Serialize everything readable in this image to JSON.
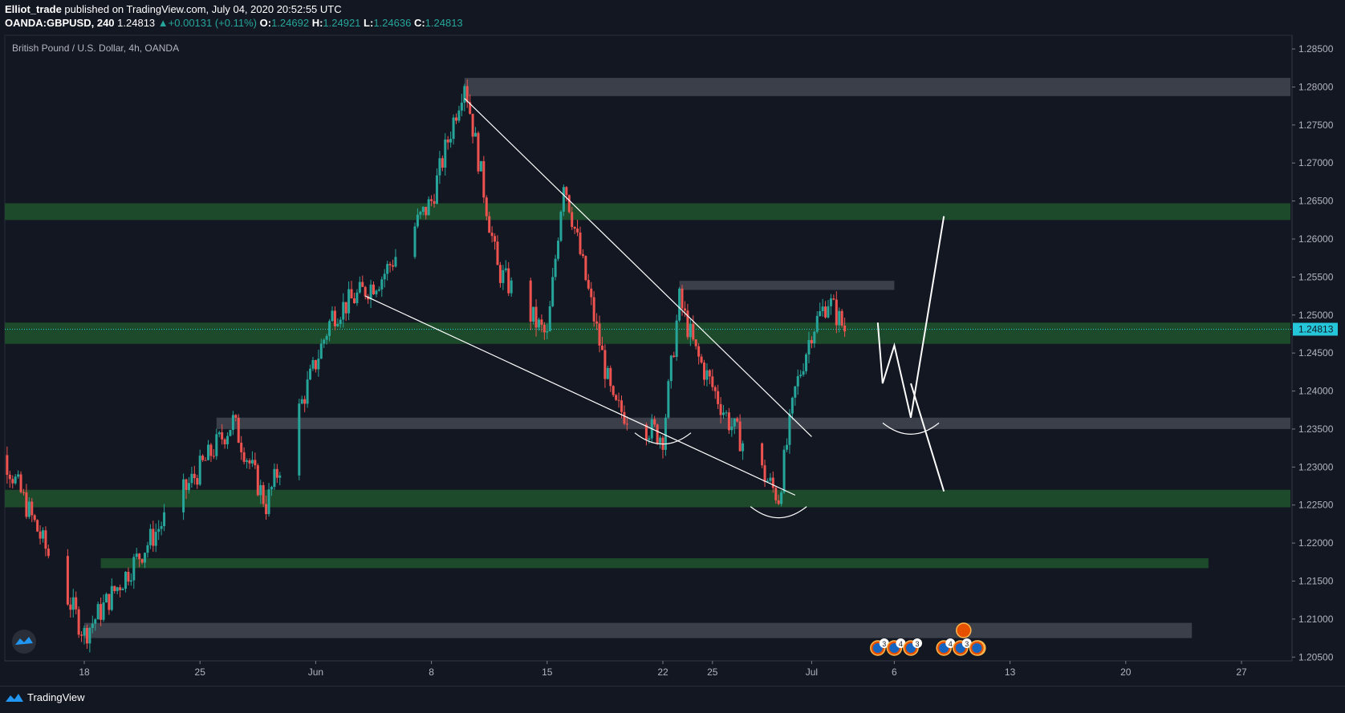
{
  "header": {
    "publisher": "Elliot_trade",
    "published_text": "published on TradingView.com, July 04, 2020 20:52:55 UTC",
    "symbol": "OANDA:GBPUSD, 240",
    "last": "1.24813",
    "change": "+0.00131 (+0.11%)",
    "open_label": "O:",
    "open": "1.24692",
    "high_label": "H:",
    "high": "1.24921",
    "low_label": "L:",
    "low": "1.24636",
    "close_label": "C:",
    "close": "1.24813"
  },
  "footer": {
    "brand": "TradingView"
  },
  "colors": {
    "up": "#26a69a",
    "down": "#ef5350",
    "bg": "#131722",
    "zone_green": "#1e4d2b",
    "zone_grey": "#434651",
    "price_tag": "#26c6da"
  },
  "chart_data": {
    "type": "candlestick",
    "title": "British Pound / U.S. Dollar, 4h, OANDA",
    "y_ticks": [
      "1.28500",
      "1.28000",
      "1.27500",
      "1.27000",
      "1.26500",
      "1.26000",
      "1.25500",
      "1.25000",
      "1.24500",
      "1.24000",
      "1.23500",
      "1.23000",
      "1.22500",
      "1.22000",
      "1.21500",
      "1.21000",
      "1.20500"
    ],
    "x_ticks": [
      {
        "label": "18",
        "date": "2020-05-18"
      },
      {
        "label": "25",
        "date": "2020-05-25"
      },
      {
        "label": "Jun",
        "date": "2020-06-01"
      },
      {
        "label": "8",
        "date": "2020-06-08"
      },
      {
        "label": "15",
        "date": "2020-06-15"
      },
      {
        "label": "22",
        "date": "2020-06-22"
      },
      {
        "label": "25",
        "date": "2020-06-25"
      },
      {
        "label": "Jul",
        "date": "2020-07-01"
      },
      {
        "label": "6",
        "date": "2020-07-06"
      },
      {
        "label": "13",
        "date": "2020-07-13"
      },
      {
        "label": "20",
        "date": "2020-07-20"
      },
      {
        "label": "27",
        "date": "2020-07-27"
      }
    ],
    "ylim": [
      1.2045,
      1.2868
    ],
    "last_price_label": "1.24813",
    "last_price": 1.24813,
    "key_prices": [
      {
        "date": "2020-05-12",
        "price": 1.237
      },
      {
        "date": "2020-05-18",
        "price": 1.208
      },
      {
        "date": "2020-05-27",
        "price": 1.236
      },
      {
        "date": "2020-05-29",
        "price": 1.225
      },
      {
        "date": "2020-06-02",
        "price": 1.25
      },
      {
        "date": "2020-06-05",
        "price": 1.255
      },
      {
        "date": "2020-06-08",
        "price": 1.265
      },
      {
        "date": "2020-06-10",
        "price": 1.281
      },
      {
        "date": "2020-06-12",
        "price": 1.256
      },
      {
        "date": "2020-06-15",
        "price": 1.247
      },
      {
        "date": "2020-06-16",
        "price": 1.268
      },
      {
        "date": "2020-06-19",
        "price": 1.238
      },
      {
        "date": "2020-06-22",
        "price": 1.234
      },
      {
        "date": "2020-06-23",
        "price": 1.252
      },
      {
        "date": "2020-06-24",
        "price": 1.245
      },
      {
        "date": "2020-06-26",
        "price": 1.236
      },
      {
        "date": "2020-06-29",
        "price": 1.226
      },
      {
        "date": "2020-06-30",
        "price": 1.24
      },
      {
        "date": "2020-07-01",
        "price": 1.248
      },
      {
        "date": "2020-07-02",
        "price": 1.252
      },
      {
        "date": "2020-07-03",
        "price": 1.2481
      }
    ],
    "zones": [
      {
        "kind": "grey",
        "from": 1.2788,
        "to": 1.2812,
        "start": "2020-06-10",
        "end": "2020-08-01"
      },
      {
        "kind": "green",
        "from": 1.2625,
        "to": 1.2647,
        "start": "2020-05-11",
        "end": "2020-08-01"
      },
      {
        "kind": "grey",
        "from": 1.2533,
        "to": 1.2545,
        "start": "2020-06-23",
        "end": "2020-07-06"
      },
      {
        "kind": "green",
        "from": 1.2462,
        "to": 1.249,
        "start": "2020-05-11",
        "end": "2020-08-01"
      },
      {
        "kind": "grey",
        "from": 1.235,
        "to": 1.2365,
        "start": "2020-05-26",
        "end": "2020-08-01"
      },
      {
        "kind": "green",
        "from": 1.2247,
        "to": 1.227,
        "start": "2020-05-11",
        "end": "2020-08-01"
      },
      {
        "kind": "green",
        "from": 1.2167,
        "to": 1.218,
        "start": "2020-05-19",
        "end": "2020-07-25"
      },
      {
        "kind": "grey",
        "from": 1.2075,
        "to": 1.2095,
        "start": "2020-05-18",
        "end": "2020-07-24"
      }
    ],
    "drawings": {
      "trendlines": [
        {
          "from": {
            "date": "2020-06-04",
            "price": 1.2525
          },
          "to": {
            "date": "2020-06-30",
            "price": 1.2263
          }
        },
        {
          "from": {
            "date": "2020-06-10",
            "price": 1.2785
          },
          "to": {
            "date": "2020-07-01",
            "price": 1.234
          }
        }
      ],
      "projection_path": [
        {
          "date": "2020-07-05",
          "price": 1.249
        },
        {
          "date": "2020-07-05",
          "price": 1.241
        },
        {
          "date": "2020-07-06",
          "price": 1.246
        },
        {
          "date": "2020-07-07",
          "price": 1.2365
        },
        {
          "date": "2020-07-09",
          "price": 1.263
        }
      ],
      "projection_alt": [
        {
          "date": "2020-07-07",
          "price": 1.241
        },
        {
          "date": "2020-07-09",
          "price": 1.2268
        }
      ],
      "arcs": [
        {
          "date": "2020-06-22",
          "price": 1.2345
        },
        {
          "date": "2020-06-29",
          "price": 1.2248
        },
        {
          "date": "2020-07-07",
          "price": 1.2358
        }
      ]
    },
    "events": [
      {
        "date": "2020-07-05",
        "label": "3"
      },
      {
        "date": "2020-07-06",
        "label": "4"
      },
      {
        "date": "2020-07-07",
        "label": "3"
      },
      {
        "date": "2020-07-09",
        "label": "4"
      },
      {
        "date": "2020-07-10",
        "label": "3"
      },
      {
        "date": "2020-07-10",
        "label": ""
      },
      {
        "date": "2020-07-11",
        "label": ""
      }
    ]
  }
}
